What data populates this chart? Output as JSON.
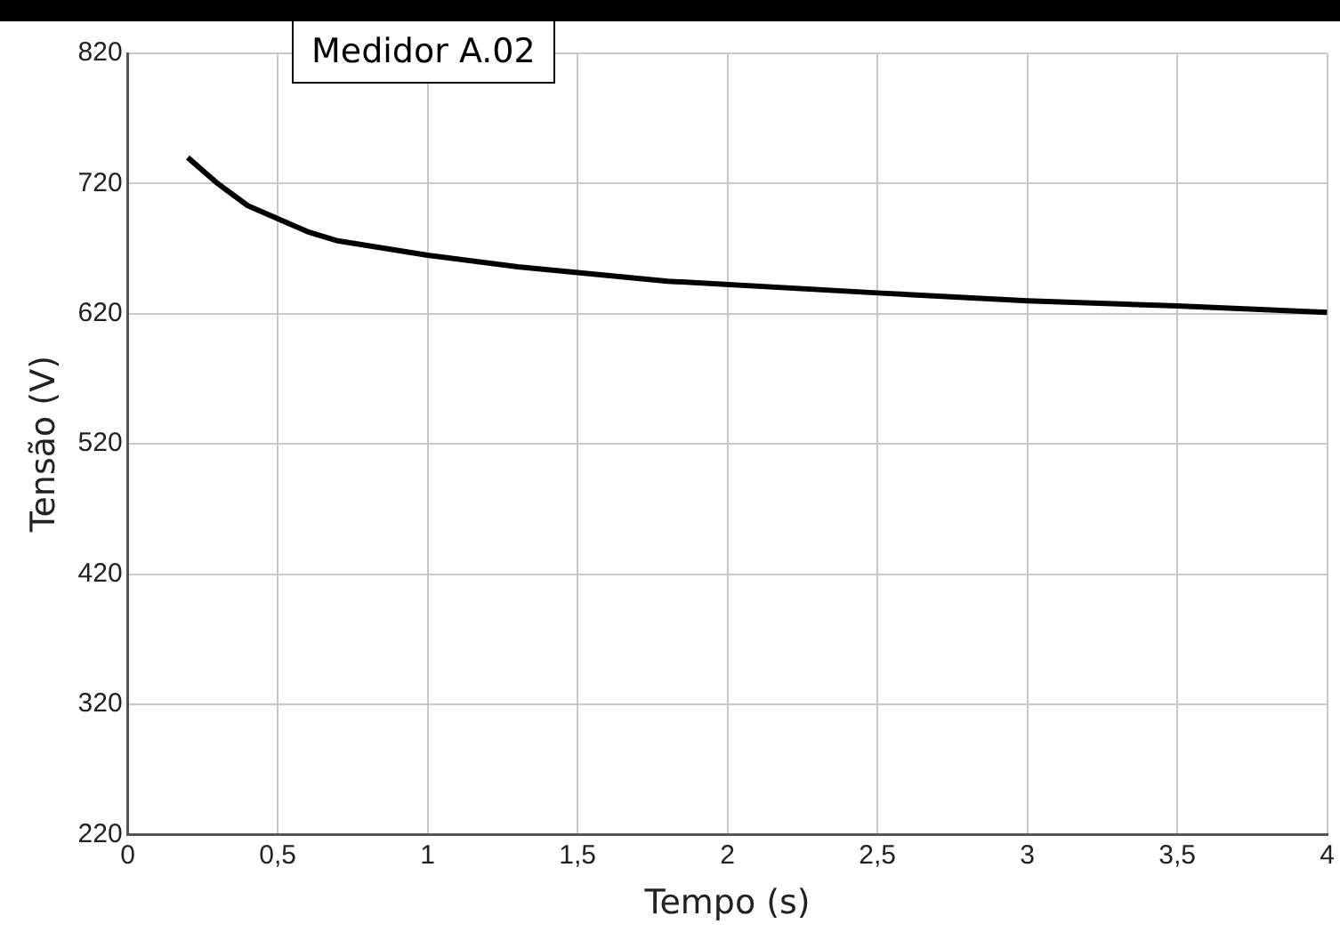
{
  "chart_data": {
    "type": "line",
    "title": "Medidor A.02",
    "xlabel": "Tempo (s)",
    "ylabel": "Tensão (V)",
    "x": [
      0.2,
      0.3,
      0.4,
      0.6,
      0.7,
      1.0,
      1.3,
      1.8,
      2.5,
      3.0,
      3.5,
      4.0
    ],
    "series": [
      {
        "color": "#000000",
        "values": [
          740,
          720,
          703,
          683,
          676,
          665,
          656,
          645,
          636,
          630,
          626,
          621
        ]
      }
    ],
    "xlim": [
      0,
      4
    ],
    "xticks": [
      0,
      {
        "value": 0.5,
        "label": "0,5"
      },
      1,
      {
        "value": 1.5,
        "label": "1,5"
      },
      2,
      {
        "value": 2.5,
        "label": "2,5"
      },
      3,
      {
        "value": 3.5,
        "label": "3,5"
      },
      4
    ],
    "ylim": [
      220,
      820
    ],
    "yticks": [
      220,
      320,
      420,
      520,
      620,
      720,
      820
    ],
    "grid": true,
    "legend": false,
    "marker": "none",
    "line_style": "solid"
  }
}
